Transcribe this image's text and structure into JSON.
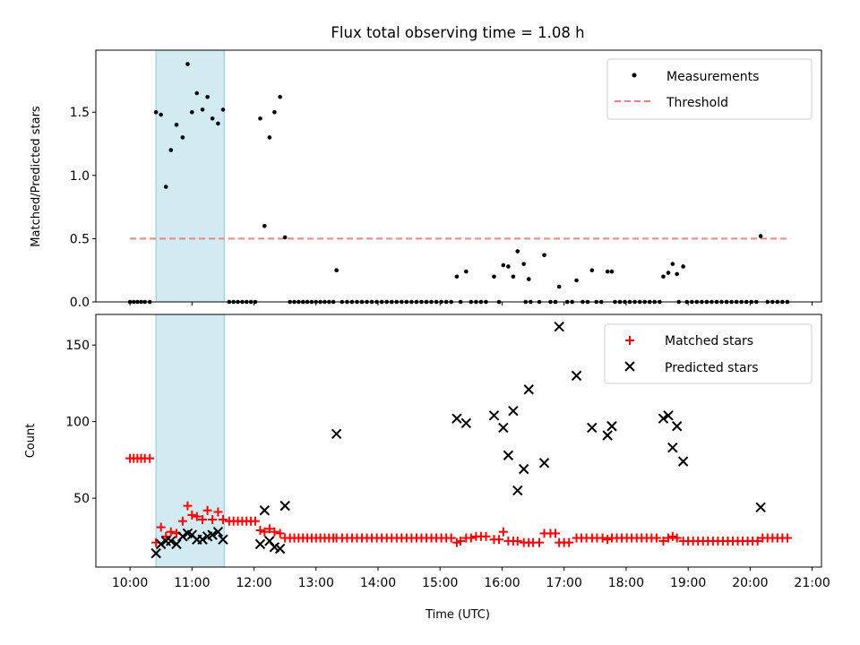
{
  "title": "Flux total observing time = 1.08 h",
  "colors": {
    "measurement": "#000000",
    "threshold": "#ff7f7f",
    "matched": "#ff0000",
    "predicted": "#000000",
    "shade": "#add8e6"
  },
  "chart_data": [
    {
      "type": "scatter",
      "ylabel": "Matched/Predicted stars",
      "xlabel": "",
      "x_unit": "hours (UTC)",
      "xlim": [
        9.45,
        21.15
      ],
      "ylim": [
        0,
        1.99
      ],
      "yticks": [
        "0.0",
        "0.5",
        "1.0",
        "1.5"
      ],
      "ytick_values": [
        0,
        0.5,
        1.0,
        1.5
      ],
      "legend": {
        "position": "top-right",
        "entries": [
          "Measurements",
          "Threshold"
        ]
      },
      "shaded_span": [
        10.42,
        11.52
      ],
      "threshold": {
        "name": "Threshold",
        "value": 0.5,
        "x_start": 10.0,
        "x_end": 20.65
      },
      "measurements": {
        "name": "Measurements",
        "zero_points_x": [
          10.0,
          10.06,
          10.12,
          10.18,
          10.24,
          10.32,
          11.6,
          11.67,
          11.74,
          11.81,
          11.88,
          11.95,
          12.02,
          12.58,
          12.65,
          12.72,
          12.79,
          12.86,
          12.93,
          13.0,
          13.07,
          13.14,
          13.21,
          13.28,
          13.42,
          13.5,
          13.58,
          13.66,
          13.74,
          13.82,
          13.9,
          13.98,
          14.06,
          14.14,
          14.22,
          14.3,
          14.38,
          14.46,
          14.54,
          14.62,
          14.7,
          14.78,
          14.86,
          14.94,
          15.02,
          15.1,
          15.18,
          15.33,
          15.5,
          15.58,
          15.66,
          15.74,
          15.95,
          16.38,
          16.46,
          16.6,
          16.78,
          16.86,
          17.05,
          17.13,
          17.3,
          17.38,
          17.52,
          17.6,
          17.82,
          17.9,
          17.98,
          18.06,
          18.14,
          18.22,
          18.3,
          18.38,
          18.46,
          18.54,
          18.85,
          18.98,
          19.06,
          19.14,
          19.22,
          19.3,
          19.38,
          19.46,
          19.54,
          19.62,
          19.7,
          19.78,
          19.86,
          19.94,
          20.02,
          20.1,
          20.28,
          20.36,
          20.44,
          20.52,
          20.6
        ],
        "points": [
          [
            10.42,
            1.5
          ],
          [
            10.5,
            1.48
          ],
          [
            10.58,
            0.91
          ],
          [
            10.66,
            1.2
          ],
          [
            10.75,
            1.4
          ],
          [
            10.85,
            1.3
          ],
          [
            10.93,
            1.88
          ],
          [
            11.0,
            1.5
          ],
          [
            11.08,
            1.65
          ],
          [
            11.17,
            1.52
          ],
          [
            11.25,
            1.62
          ],
          [
            11.33,
            1.45
          ],
          [
            11.42,
            1.41
          ],
          [
            11.5,
            1.52
          ],
          [
            12.1,
            1.45
          ],
          [
            12.17,
            0.6
          ],
          [
            12.25,
            1.3
          ],
          [
            12.33,
            1.5
          ],
          [
            12.42,
            1.62
          ],
          [
            12.5,
            0.51
          ],
          [
            13.33,
            0.25
          ],
          [
            15.27,
            0.2
          ],
          [
            15.42,
            0.24
          ],
          [
            15.87,
            0.2
          ],
          [
            16.02,
            0.29
          ],
          [
            16.1,
            0.28
          ],
          [
            16.18,
            0.2
          ],
          [
            16.25,
            0.4
          ],
          [
            16.35,
            0.3
          ],
          [
            16.43,
            0.18
          ],
          [
            16.68,
            0.37
          ],
          [
            16.92,
            0.12
          ],
          [
            17.2,
            0.17
          ],
          [
            17.45,
            0.25
          ],
          [
            17.7,
            0.24
          ],
          [
            17.77,
            0.24
          ],
          [
            18.6,
            0.2
          ],
          [
            18.68,
            0.23
          ],
          [
            18.75,
            0.3
          ],
          [
            18.82,
            0.22
          ],
          [
            18.92,
            0.28
          ],
          [
            20.17,
            0.52
          ]
        ]
      }
    },
    {
      "type": "scatter",
      "ylabel": "Count",
      "xlabel": "Time (UTC)",
      "x_unit": "hours (UTC)",
      "xlim": [
        9.45,
        21.15
      ],
      "ylim": [
        5,
        170
      ],
      "yticks": [
        "50",
        "100",
        "150"
      ],
      "ytick_values": [
        50,
        100,
        150
      ],
      "xticks": [
        "10:00",
        "11:00",
        "12:00",
        "13:00",
        "14:00",
        "15:00",
        "16:00",
        "17:00",
        "18:00",
        "19:00",
        "20:00",
        "21:00"
      ],
      "xtick_values": [
        10,
        11,
        12,
        13,
        14,
        15,
        16,
        17,
        18,
        19,
        20,
        21
      ],
      "legend": {
        "position": "top-right",
        "entries": [
          "Matched stars",
          "Predicted stars"
        ]
      },
      "shaded_span": [
        10.42,
        11.52
      ],
      "series": [
        {
          "name": "Matched stars",
          "marker": "plus",
          "points": [
            [
              10.0,
              76
            ],
            [
              10.06,
              76
            ],
            [
              10.12,
              76
            ],
            [
              10.18,
              76
            ],
            [
              10.24,
              76
            ],
            [
              10.32,
              76
            ],
            [
              10.42,
              21
            ],
            [
              10.5,
              31
            ],
            [
              10.58,
              25
            ],
            [
              10.66,
              28
            ],
            [
              10.75,
              27
            ],
            [
              10.85,
              35
            ],
            [
              10.93,
              45
            ],
            [
              11.0,
              39
            ],
            [
              11.08,
              38
            ],
            [
              11.17,
              36
            ],
            [
              11.25,
              42
            ],
            [
              11.33,
              36
            ],
            [
              11.42,
              41
            ],
            [
              11.5,
              36
            ],
            [
              11.6,
              35
            ],
            [
              11.67,
              35
            ],
            [
              11.74,
              35
            ],
            [
              11.81,
              35
            ],
            [
              11.88,
              35
            ],
            [
              11.95,
              35
            ],
            [
              12.02,
              35
            ],
            [
              12.1,
              29
            ],
            [
              12.17,
              28
            ],
            [
              12.25,
              30
            ],
            [
              12.33,
              28
            ],
            [
              12.42,
              27
            ],
            [
              12.5,
              24
            ],
            [
              12.58,
              24
            ],
            [
              12.65,
              24
            ],
            [
              12.72,
              24
            ],
            [
              12.79,
              24
            ],
            [
              12.86,
              24
            ],
            [
              12.93,
              24
            ],
            [
              13.0,
              24
            ],
            [
              13.07,
              24
            ],
            [
              13.14,
              24
            ],
            [
              13.21,
              24
            ],
            [
              13.28,
              24
            ],
            [
              13.33,
              24
            ],
            [
              13.42,
              24
            ],
            [
              13.5,
              24
            ],
            [
              13.58,
              24
            ],
            [
              13.66,
              24
            ],
            [
              13.74,
              24
            ],
            [
              13.82,
              24
            ],
            [
              13.9,
              24
            ],
            [
              13.98,
              24
            ],
            [
              14.06,
              24
            ],
            [
              14.14,
              24
            ],
            [
              14.22,
              24
            ],
            [
              14.3,
              24
            ],
            [
              14.38,
              24
            ],
            [
              14.46,
              24
            ],
            [
              14.54,
              24
            ],
            [
              14.62,
              24
            ],
            [
              14.7,
              24
            ],
            [
              14.78,
              24
            ],
            [
              14.86,
              24
            ],
            [
              14.94,
              24
            ],
            [
              15.02,
              24
            ],
            [
              15.1,
              24
            ],
            [
              15.18,
              24
            ],
            [
              15.27,
              21
            ],
            [
              15.33,
              22
            ],
            [
              15.42,
              24
            ],
            [
              15.5,
              24
            ],
            [
              15.58,
              25
            ],
            [
              15.66,
              25
            ],
            [
              15.74,
              25
            ],
            [
              15.87,
              23
            ],
            [
              15.95,
              23
            ],
            [
              16.02,
              28
            ],
            [
              16.1,
              22
            ],
            [
              16.18,
              22
            ],
            [
              16.25,
              22
            ],
            [
              16.35,
              21
            ],
            [
              16.43,
              21
            ],
            [
              16.5,
              21
            ],
            [
              16.6,
              21
            ],
            [
              16.68,
              27
            ],
            [
              16.78,
              27
            ],
            [
              16.86,
              27
            ],
            [
              16.92,
              21
            ],
            [
              17.0,
              21
            ],
            [
              17.08,
              21
            ],
            [
              17.2,
              24
            ],
            [
              17.28,
              24
            ],
            [
              17.36,
              24
            ],
            [
              17.45,
              24
            ],
            [
              17.53,
              24
            ],
            [
              17.62,
              24
            ],
            [
              17.7,
              23
            ],
            [
              17.77,
              24
            ],
            [
              17.85,
              24
            ],
            [
              17.93,
              24
            ],
            [
              18.01,
              24
            ],
            [
              18.09,
              24
            ],
            [
              18.17,
              24
            ],
            [
              18.25,
              24
            ],
            [
              18.33,
              24
            ],
            [
              18.41,
              24
            ],
            [
              18.49,
              24
            ],
            [
              18.6,
              22
            ],
            [
              18.68,
              24
            ],
            [
              18.75,
              25
            ],
            [
              18.82,
              24
            ],
            [
              18.92,
              22
            ],
            [
              19.0,
              22
            ],
            [
              19.08,
              22
            ],
            [
              19.16,
              22
            ],
            [
              19.24,
              22
            ],
            [
              19.32,
              22
            ],
            [
              19.4,
              22
            ],
            [
              19.48,
              22
            ],
            [
              19.56,
              22
            ],
            [
              19.64,
              22
            ],
            [
              19.72,
              22
            ],
            [
              19.8,
              22
            ],
            [
              19.88,
              22
            ],
            [
              19.96,
              22
            ],
            [
              20.04,
              22
            ],
            [
              20.12,
              22
            ],
            [
              20.2,
              24
            ],
            [
              20.28,
              24
            ],
            [
              20.36,
              24
            ],
            [
              20.44,
              24
            ],
            [
              20.52,
              24
            ],
            [
              20.6,
              24
            ]
          ]
        },
        {
          "name": "Predicted stars",
          "marker": "x",
          "points": [
            [
              10.42,
              14
            ],
            [
              10.5,
              20
            ],
            [
              10.58,
              22
            ],
            [
              10.66,
              22
            ],
            [
              10.75,
              20
            ],
            [
              10.85,
              25
            ],
            [
              10.93,
              27
            ],
            [
              11.0,
              26
            ],
            [
              11.08,
              23
            ],
            [
              11.17,
              23
            ],
            [
              11.25,
              25
            ],
            [
              11.33,
              26
            ],
            [
              11.42,
              28
            ],
            [
              11.5,
              23
            ],
            [
              12.1,
              20
            ],
            [
              12.17,
              42
            ],
            [
              12.25,
              22
            ],
            [
              12.33,
              18
            ],
            [
              12.42,
              17
            ],
            [
              12.5,
              45
            ],
            [
              13.33,
              92
            ],
            [
              15.27,
              102
            ],
            [
              15.42,
              99
            ],
            [
              15.87,
              104
            ],
            [
              16.02,
              96
            ],
            [
              16.1,
              78
            ],
            [
              16.18,
              107
            ],
            [
              16.25,
              55
            ],
            [
              16.35,
              69
            ],
            [
              16.43,
              121
            ],
            [
              16.68,
              73
            ],
            [
              16.92,
              162
            ],
            [
              17.2,
              130
            ],
            [
              17.45,
              96
            ],
            [
              17.7,
              91
            ],
            [
              17.77,
              97
            ],
            [
              18.6,
              102
            ],
            [
              18.68,
              104
            ],
            [
              18.75,
              83
            ],
            [
              18.82,
              97
            ],
            [
              18.92,
              74
            ],
            [
              20.17,
              44
            ]
          ]
        }
      ]
    }
  ]
}
